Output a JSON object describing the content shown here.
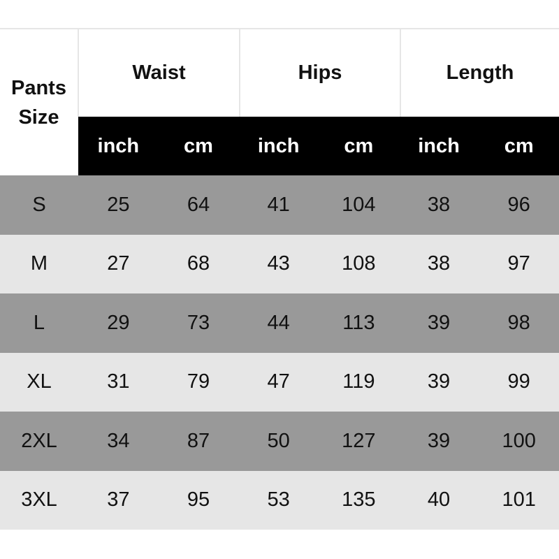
{
  "table": {
    "size_header": [
      "Pants",
      "Size"
    ],
    "groups": [
      "Waist",
      "Hips",
      "Length"
    ],
    "units": [
      "inch",
      "cm",
      "inch",
      "cm",
      "inch",
      "cm"
    ],
    "rows": [
      [
        "S",
        "25",
        "64",
        "41",
        "104",
        "38",
        "96"
      ],
      [
        "M",
        "27",
        "68",
        "43",
        "108",
        "38",
        "97"
      ],
      [
        "L",
        "29",
        "73",
        "44",
        "113",
        "39",
        "98"
      ],
      [
        "XL",
        "31",
        "79",
        "47",
        "119",
        "39",
        "99"
      ],
      [
        "2XL",
        "34",
        "87",
        "50",
        "127",
        "39",
        "100"
      ],
      [
        "3XL",
        "37",
        "95",
        "53",
        "135",
        "40",
        "101"
      ]
    ]
  },
  "colors": {
    "subheader_bg": "#000000",
    "row_dark": "#999999",
    "row_light": "#e6e6e6"
  }
}
